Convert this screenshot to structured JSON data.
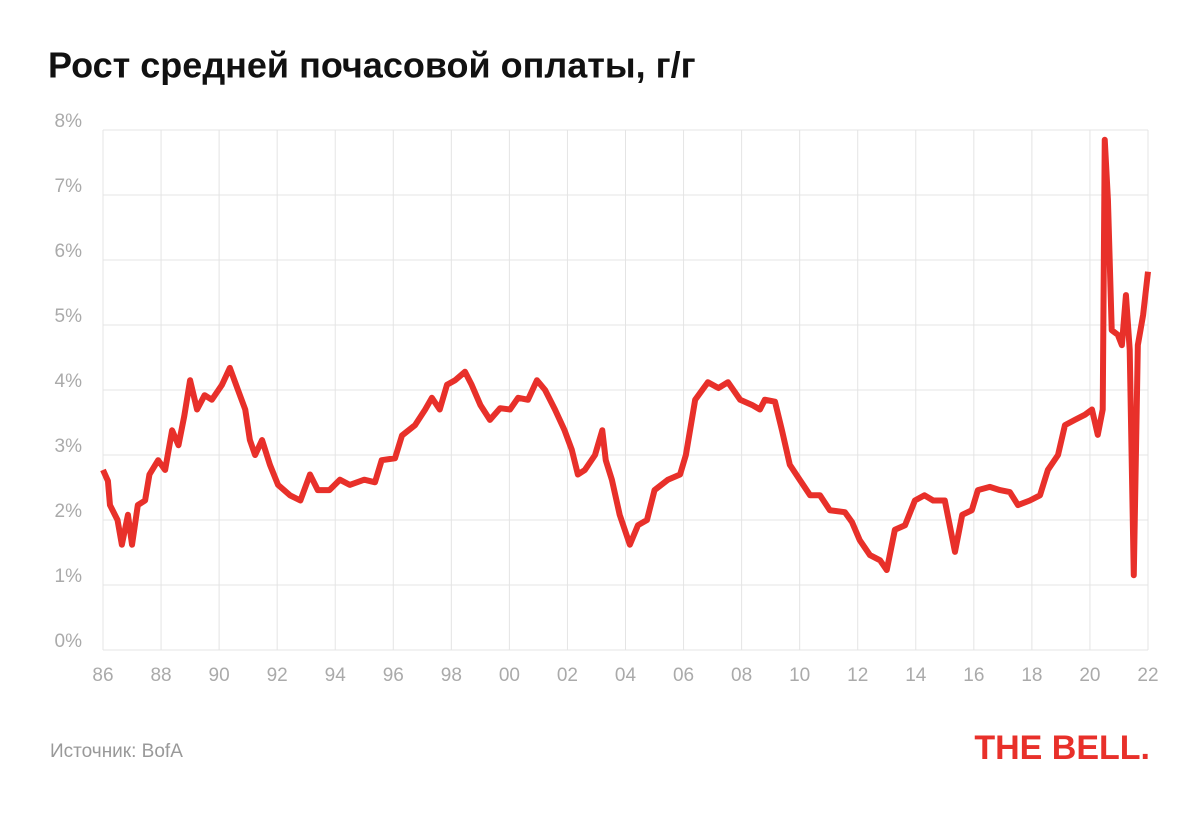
{
  "chart_data": {
    "type": "line",
    "title": "Рост средней почасовой оплаты, г/г",
    "source": "Источник: BofA",
    "brand": "THE BELL.",
    "x": [
      1986.0,
      1986.17,
      1986.24,
      1986.5,
      1986.65,
      1986.86,
      1987.0,
      1987.2,
      1987.45,
      1987.6,
      1987.9,
      1988.14,
      1988.38,
      1988.6,
      1988.8,
      1989.0,
      1989.24,
      1989.5,
      1989.75,
      1990.1,
      1990.37,
      1990.65,
      1990.9,
      1991.06,
      1991.24,
      1991.48,
      1991.75,
      1992.03,
      1992.44,
      1992.8,
      1993.13,
      1993.4,
      1993.8,
      1994.16,
      1994.5,
      1995.0,
      1995.37,
      1995.6,
      1996.06,
      1996.3,
      1996.75,
      1997.1,
      1997.33,
      1997.6,
      1997.85,
      1998.13,
      1998.47,
      1998.7,
      1999.0,
      1999.33,
      1999.68,
      2000.02,
      2000.3,
      2000.64,
      2000.95,
      2001.23,
      2001.57,
      2001.9,
      2002.15,
      2002.36,
      2002.6,
      2002.95,
      2003.2,
      2003.32,
      2003.53,
      2003.8,
      2004.15,
      2004.43,
      2004.74,
      2005.0,
      2005.46,
      2005.88,
      2006.08,
      2006.4,
      2006.84,
      2007.2,
      2007.53,
      2007.95,
      2008.36,
      2008.63,
      2008.8,
      2009.15,
      2009.39,
      2009.66,
      2010.0,
      2010.36,
      2010.7,
      2011.04,
      2011.56,
      2011.8,
      2012.07,
      2012.42,
      2012.77,
      2013.0,
      2013.28,
      2013.63,
      2013.97,
      2014.3,
      2014.6,
      2015.0,
      2015.35,
      2015.6,
      2015.93,
      2016.14,
      2016.55,
      2016.9,
      2017.24,
      2017.52,
      2017.93,
      2018.28,
      2018.55,
      2018.9,
      2019.14,
      2019.48,
      2019.83,
      2020.07,
      2020.27,
      2020.44,
      2020.51,
      2020.62,
      2020.75,
      2020.96,
      2021.1,
      2021.24,
      2021.37,
      2021.51,
      2021.65,
      2021.83,
      2022.0
    ],
    "series": [
      {
        "color": "#e8302a",
        "values": [
          2.77,
          2.6,
          2.23,
          2.0,
          1.62,
          2.08,
          1.62,
          2.23,
          2.3,
          2.7,
          2.92,
          2.77,
          3.38,
          3.15,
          3.6,
          4.15,
          3.7,
          3.92,
          3.85,
          4.08,
          4.34,
          4.0,
          3.7,
          3.23,
          3.0,
          3.23,
          2.85,
          2.54,
          2.38,
          2.3,
          2.7,
          2.46,
          2.46,
          2.62,
          2.54,
          2.62,
          2.58,
          2.92,
          2.95,
          3.3,
          3.46,
          3.7,
          3.88,
          3.7,
          4.08,
          4.15,
          4.28,
          4.08,
          3.77,
          3.54,
          3.72,
          3.7,
          3.88,
          3.85,
          4.15,
          4.0,
          3.7,
          3.38,
          3.08,
          2.7,
          2.77,
          3.0,
          3.38,
          2.92,
          2.62,
          2.08,
          1.62,
          1.92,
          2.0,
          2.46,
          2.62,
          2.7,
          3.0,
          3.85,
          4.12,
          4.03,
          4.12,
          3.85,
          3.77,
          3.7,
          3.85,
          3.82,
          3.38,
          2.85,
          2.62,
          2.38,
          2.38,
          2.15,
          2.12,
          1.97,
          1.69,
          1.46,
          1.38,
          1.23,
          1.85,
          1.92,
          2.3,
          2.38,
          2.3,
          2.3,
          1.51,
          2.08,
          2.15,
          2.46,
          2.51,
          2.46,
          2.43,
          2.23,
          2.3,
          2.38,
          2.77,
          3.0,
          3.46,
          3.54,
          3.62,
          3.7,
          3.31,
          3.7,
          7.85,
          6.92,
          4.92,
          4.85,
          4.69,
          5.46,
          4.62,
          1.15,
          4.69,
          5.15,
          5.82
        ]
      }
    ],
    "xlim": [
      1986,
      2022
    ],
    "xticks": [
      {
        "value": 1986,
        "label": "86"
      },
      {
        "value": 1988,
        "label": "88"
      },
      {
        "value": 1990,
        "label": "90"
      },
      {
        "value": 1992,
        "label": "92"
      },
      {
        "value": 1994,
        "label": "94"
      },
      {
        "value": 1996,
        "label": "96"
      },
      {
        "value": 1998,
        "label": "98"
      },
      {
        "value": 2000,
        "label": "00"
      },
      {
        "value": 2002,
        "label": "02"
      },
      {
        "value": 2004,
        "label": "04"
      },
      {
        "value": 2006,
        "label": "06"
      },
      {
        "value": 2008,
        "label": "08"
      },
      {
        "value": 2010,
        "label": "10"
      },
      {
        "value": 2012,
        "label": "12"
      },
      {
        "value": 2014,
        "label": "14"
      },
      {
        "value": 2016,
        "label": "16"
      },
      {
        "value": 2018,
        "label": "18"
      },
      {
        "value": 2020,
        "label": "20"
      },
      {
        "value": 2022,
        "label": "22"
      }
    ],
    "ylim": [
      0,
      8
    ],
    "yticks": [
      {
        "value": 0,
        "label": "0%"
      },
      {
        "value": 1,
        "label": "1%"
      },
      {
        "value": 2,
        "label": "2%"
      },
      {
        "value": 3,
        "label": "3%"
      },
      {
        "value": 4,
        "label": "4%"
      },
      {
        "value": 5,
        "label": "5%"
      },
      {
        "value": 6,
        "label": "6%"
      },
      {
        "value": 7,
        "label": "7%"
      },
      {
        "value": 8,
        "label": "8%"
      }
    ],
    "grid": true
  }
}
